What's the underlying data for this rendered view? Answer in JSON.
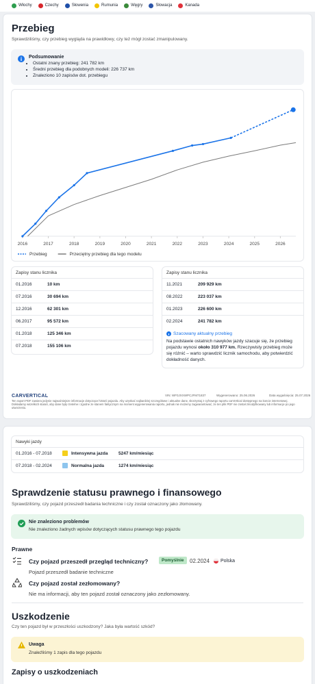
{
  "countries": [
    "Włochy",
    "Czechy",
    "Słowenia",
    "Rumunia",
    "Węgry",
    "Słowacja",
    "Kanada"
  ],
  "mileage": {
    "title": "Przebieg",
    "description": "Sprawdziliśmy, czy przebieg wygląda na prawidłowy, czy też mógł zostać zmanipulowany.",
    "summary": {
      "title": "Podsumowanie",
      "items": [
        "Ostatni znany przebieg: 241 782 km",
        "Średni przebieg dla podobnych modeli: 226 737 km",
        "Znaleziono 10 zapisów dot. przebiegu"
      ]
    }
  },
  "chart_data": {
    "type": "line",
    "xlim": [
      2015.95,
      2026.6
    ],
    "xticks": [
      2016,
      2017,
      2018,
      2019,
      2020,
      2021,
      2022,
      2023,
      2024,
      2025,
      2026
    ],
    "ylim": [
      0,
      330000
    ],
    "series": [
      {
        "name": "Przebieg",
        "color": "#1a73e8",
        "markers": true,
        "x": [
          2016.0,
          2016.5,
          2016.92,
          2017.42,
          2018.0,
          2018.5,
          2021.83,
          2022.58,
          2023.0,
          2024.08
        ],
        "values": [
          10,
          30694,
          62301,
          95572,
          125346,
          155106,
          209929,
          223037,
          226600,
          241782
        ]
      },
      {
        "name": "Przeciętny przebieg dla tego modelu",
        "color": "#7a7a7a",
        "x": [
          2016.2,
          2017,
          2018,
          2019,
          2020,
          2021,
          2022,
          2023,
          2024,
          2025,
          2026,
          2026.6
        ],
        "values": [
          0,
          50000,
          78000,
          100000,
          120000,
          140000,
          163000,
          182000,
          197000,
          210000,
          224000,
          230000
        ]
      },
      {
        "color": "#1a73e8",
        "dash": true,
        "x": [
          2024.08,
          2026.5
        ],
        "values": [
          241782,
          310977
        ]
      }
    ]
  },
  "records": {
    "left": {
      "title": "Zapisy stanu licznika",
      "rows": [
        [
          "01.2016",
          "10 km"
        ],
        [
          "07.2016",
          "30 694 km"
        ],
        [
          "12.2016",
          "62 301 km"
        ],
        [
          "06.2017",
          "95 572 km"
        ],
        [
          "01.2018",
          "125 346 km"
        ],
        [
          "07.2018",
          "155 106 km"
        ]
      ]
    },
    "right": {
      "title": "Zapisy stanu licznika",
      "rows": [
        [
          "11.2021",
          "209 929 km"
        ],
        [
          "08.2022",
          "223 037 km"
        ],
        [
          "01.2023",
          "226 600 km"
        ],
        [
          "02.2024",
          "241 782 km"
        ]
      ],
      "estimate": {
        "title": "Szacowany aktualny przebieg",
        "text": "Na podstawie ostatnich nawyków jazdy szacuje się, że przebieg pojazdu wynosi ",
        "bold": "około 310 977 km.",
        "text_after": " Rzeczywisty przebieg może się różnić – warto sprawdzić licznik samochodu, aby potwierdzić dokładność danych."
      }
    }
  },
  "footer": {
    "logo": "CARVERTICAL",
    "vin": "VIN: WF0JXXWPCJFM71837",
    "generated": "Wygenerowano: 25.06.2026",
    "expires": "Data wygaśnięcia: 25.07.2026",
    "disclaimer": "Ten raport PDF zawiera jedynie najważniejsze informacje dotyczące historii pojazdu. Aby uzyskać najbardziej szczegółowe i aktualne dane, skorzystaj z cyfrowego raportu carVertical dostępnego na koncie internetowej. Dokładamy wszelkich starań, aby dane były rzetelne i zgodne ze stanem faktycznym na moment wygenerowania raportu, jednak nie możemy zagwarantować, że ten plik PDF nie został zmodyfikowany lub informacje po jego utworzeniu."
  },
  "driving_habits": {
    "title": "Nawyki jazdy",
    "rows": [
      [
        "01.2016 - 07.2018",
        "Intensywna jazda",
        "5247 km/miesiąc"
      ],
      [
        "07.2018 - 02.2024",
        "Normalna jazda",
        "1274 km/miesiąc"
      ]
    ]
  },
  "legal": {
    "title": "Sprawdzenie statusu prawnego i finansowego",
    "description": "Sprawdziliśmy, czy pojazd przeszedł badania techniczne i czy został oznaczony jako złomowany.",
    "status": {
      "title": "Nie znaleziono problemów",
      "text": "Nie znaleziono żadnych wpisów dotyczących statusu prawnego tego pojazdu"
    },
    "section": "Prawne",
    "inspection": {
      "question": "Czy pojazd przeszedł przegląd techniczny?",
      "badge": "Pomyślnie",
      "date": "02.2024",
      "country": "Polska",
      "answer": "Pojazd przeszedł badanie techniczne"
    },
    "scrapped": {
      "question": "Czy pojazd został zezłomowany?",
      "answer": "Nie ma informacji, aby ten pojazd został oznaczony jako zezłomowany."
    }
  },
  "damage": {
    "title": "Uszkodzenie",
    "description": "Czy ten pojazd był w przeszłości uszkodzony? Jaka była wartość szkód?",
    "warning": {
      "title": "Uwaga",
      "text": "Znaleźliśmy 1 zapis dla tego pojazdu"
    },
    "records_title": "Zapisy o uszkodzeniach"
  }
}
